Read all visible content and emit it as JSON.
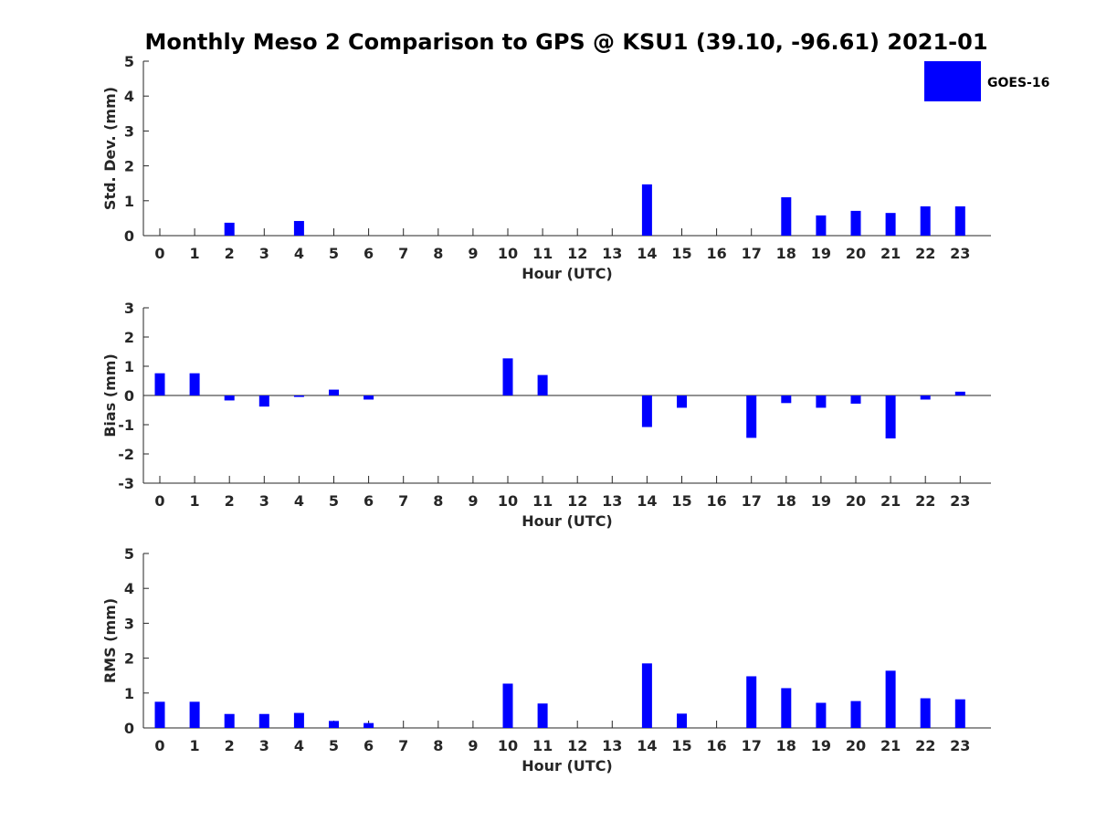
{
  "title": "Monthly Meso 2 Comparison to GPS @ KSU1 (39.10, -96.61) 2021-01",
  "legend": {
    "label": "GOES-16",
    "color": "#0000ff"
  },
  "chart_data": [
    {
      "type": "bar",
      "categories": [
        "0",
        "1",
        "2",
        "3",
        "4",
        "5",
        "6",
        "7",
        "8",
        "9",
        "10",
        "11",
        "12",
        "13",
        "14",
        "15",
        "16",
        "17",
        "18",
        "19",
        "20",
        "21",
        "22",
        "23"
      ],
      "series": [
        {
          "name": "GOES-16",
          "values": [
            null,
            null,
            0.37,
            null,
            0.42,
            null,
            null,
            null,
            null,
            null,
            null,
            null,
            null,
            null,
            1.47,
            null,
            null,
            null,
            1.1,
            0.58,
            0.71,
            0.65,
            0.84,
            0.84
          ]
        }
      ],
      "xlabel": "Hour (UTC)",
      "ylabel": "Std. Dev. (mm)",
      "ylim": [
        0,
        5
      ],
      "yticks": [
        "0",
        "1",
        "2",
        "3",
        "4",
        "5"
      ],
      "grid": false,
      "legend_position": "top-right"
    },
    {
      "type": "bar",
      "categories": [
        "0",
        "1",
        "2",
        "3",
        "4",
        "5",
        "6",
        "7",
        "8",
        "9",
        "10",
        "11",
        "12",
        "13",
        "14",
        "15",
        "16",
        "17",
        "18",
        "19",
        "20",
        "21",
        "22",
        "23"
      ],
      "series": [
        {
          "name": "GOES-16",
          "values": [
            0.76,
            0.76,
            -0.17,
            -0.38,
            -0.05,
            0.2,
            -0.14,
            null,
            null,
            null,
            1.27,
            0.7,
            null,
            null,
            -1.08,
            -0.42,
            null,
            -1.45,
            -0.26,
            -0.42,
            -0.28,
            -1.47,
            -0.14,
            0.13
          ]
        }
      ],
      "xlabel": "Hour (UTC)",
      "ylabel": "Bias (mm)",
      "ylim": [
        -3,
        3
      ],
      "yticks": [
        "-3",
        "-2",
        "-1",
        "0",
        "1",
        "2",
        "3"
      ],
      "grid": false,
      "zero_line": true
    },
    {
      "type": "bar",
      "categories": [
        "0",
        "1",
        "2",
        "3",
        "4",
        "5",
        "6",
        "7",
        "8",
        "9",
        "10",
        "11",
        "12",
        "13",
        "14",
        "15",
        "16",
        "17",
        "18",
        "19",
        "20",
        "21",
        "22",
        "23"
      ],
      "series": [
        {
          "name": "GOES-16",
          "values": [
            0.75,
            0.75,
            0.4,
            0.4,
            0.43,
            0.2,
            0.14,
            null,
            null,
            null,
            1.27,
            0.7,
            null,
            null,
            1.85,
            0.41,
            null,
            1.48,
            1.14,
            0.72,
            0.77,
            1.64,
            0.85,
            0.82
          ]
        }
      ],
      "xlabel": "Hour (UTC)",
      "ylabel": "RMS (mm)",
      "ylim": [
        0,
        5
      ],
      "yticks": [
        "0",
        "1",
        "2",
        "3",
        "4",
        "5"
      ],
      "grid": false
    }
  ]
}
